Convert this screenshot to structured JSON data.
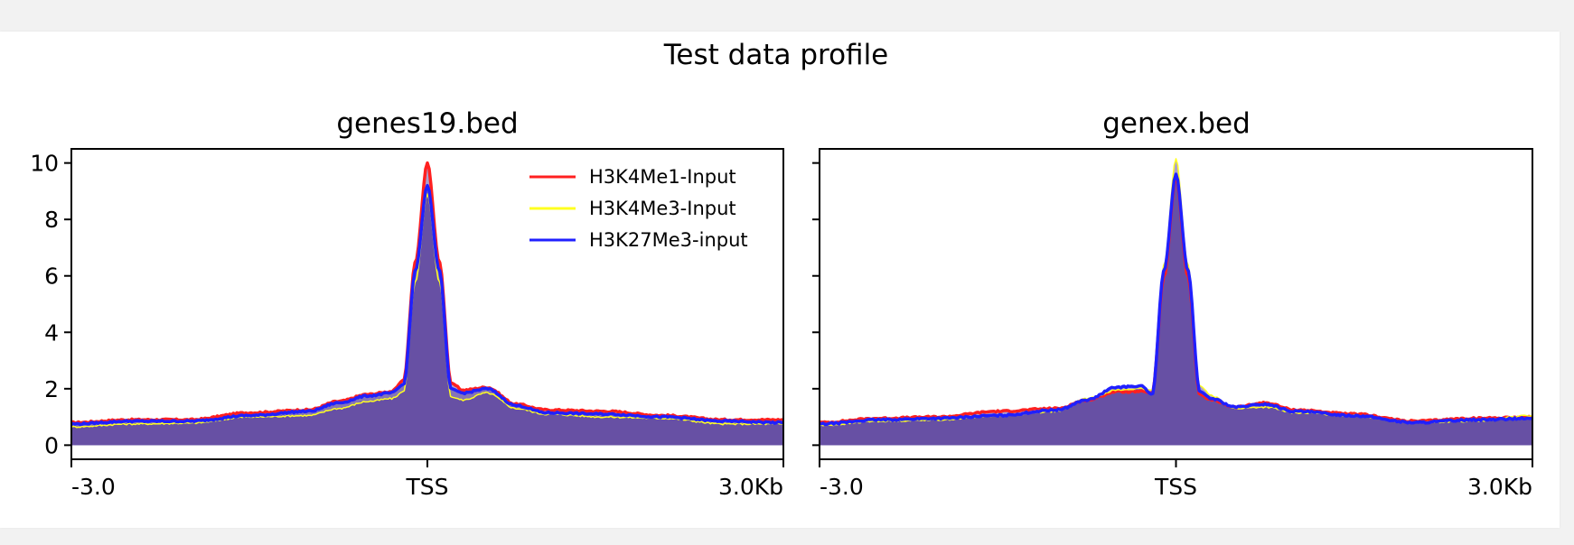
{
  "figure": {
    "suptitle": "Test data profile",
    "fill_color": "#6750a4"
  },
  "chart_data": [
    {
      "type": "area",
      "title": "genes19.bed",
      "xlabel": "",
      "ylabel": "",
      "ylim": [
        -0.5,
        10.5
      ],
      "yticks": [
        "0",
        "2",
        "4",
        "6",
        "8",
        "10"
      ],
      "xticks": [
        "-3.0",
        "TSS",
        "3.0Kb"
      ],
      "x": [
        -3.0,
        -2.5,
        -2.0,
        -1.5,
        -1.0,
        -0.75,
        -0.5,
        -0.3,
        -0.2,
        -0.1,
        0.0,
        0.1,
        0.2,
        0.3,
        0.5,
        0.75,
        1.0,
        1.5,
        2.0,
        2.5,
        3.0
      ],
      "legend_position": "upper right",
      "series": [
        {
          "name": "H3K4Me1-Input",
          "color": "#ff2020",
          "values": [
            0.8,
            0.9,
            0.9,
            1.15,
            1.25,
            1.55,
            1.8,
            1.9,
            2.3,
            6.5,
            10.0,
            6.5,
            2.2,
            1.95,
            2.05,
            1.45,
            1.25,
            1.2,
            1.05,
            0.9,
            0.9
          ]
        },
        {
          "name": "H3K4Me3-Input",
          "color": "#ffff20",
          "values": [
            0.65,
            0.75,
            0.78,
            1.0,
            1.05,
            1.3,
            1.55,
            1.65,
            1.9,
            5.8,
            8.9,
            5.8,
            1.7,
            1.6,
            1.85,
            1.3,
            1.1,
            1.0,
            0.95,
            0.75,
            0.75
          ]
        },
        {
          "name": "H3K27Me3-input",
          "color": "#2020ff",
          "values": [
            0.75,
            0.85,
            0.85,
            1.05,
            1.2,
            1.5,
            1.75,
            1.85,
            2.15,
            6.2,
            9.2,
            6.2,
            2.0,
            1.85,
            2.0,
            1.4,
            1.15,
            1.1,
            1.0,
            0.85,
            0.8
          ]
        }
      ]
    },
    {
      "type": "area",
      "title": "genex.bed",
      "xlabel": "",
      "ylabel": "",
      "ylim": [
        -0.5,
        10.5
      ],
      "yticks": [
        "",
        "",
        "",
        "",
        "",
        ""
      ],
      "xticks": [
        "-3.0",
        "TSS",
        "3.0Kb"
      ],
      "x": [
        -3.0,
        -2.5,
        -2.0,
        -1.5,
        -1.0,
        -0.75,
        -0.5,
        -0.3,
        -0.2,
        -0.1,
        0.0,
        0.1,
        0.2,
        0.3,
        0.5,
        0.75,
        1.0,
        1.5,
        2.0,
        2.5,
        3.0
      ],
      "series": [
        {
          "name": "H3K4Me1-Input",
          "color": "#ff2020",
          "values": [
            0.8,
            0.95,
            1.0,
            1.2,
            1.3,
            1.6,
            1.9,
            1.9,
            1.85,
            6.0,
            9.5,
            6.0,
            1.8,
            1.6,
            1.35,
            1.5,
            1.25,
            1.1,
            0.85,
            0.95,
            1.0
          ]
        },
        {
          "name": "H3K4Me3-Input",
          "color": "#ffff20",
          "values": [
            0.7,
            0.85,
            0.9,
            1.05,
            1.2,
            1.65,
            1.95,
            2.0,
            1.95,
            6.4,
            10.15,
            6.4,
            2.1,
            1.75,
            1.3,
            1.35,
            1.15,
            1.05,
            0.8,
            0.85,
            1.05
          ]
        },
        {
          "name": "H3K27Me3-input",
          "color": "#2020ff",
          "values": [
            0.75,
            0.9,
            0.95,
            1.05,
            1.25,
            1.6,
            2.05,
            2.1,
            1.8,
            6.2,
            9.6,
            6.2,
            1.9,
            1.65,
            1.35,
            1.45,
            1.2,
            1.05,
            0.8,
            0.9,
            0.95
          ]
        }
      ]
    }
  ]
}
